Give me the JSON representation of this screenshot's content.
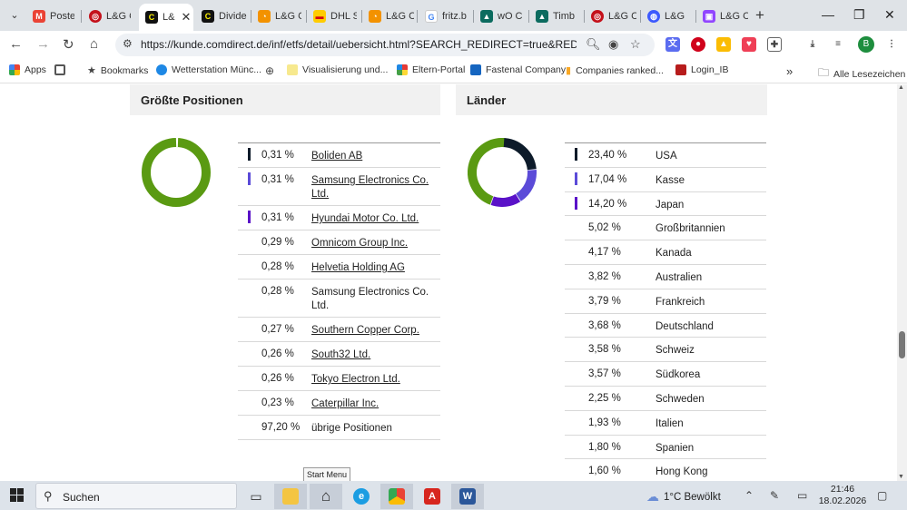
{
  "browser": {
    "tabs": [
      {
        "label": "Poste",
        "icon": "gmail-icon",
        "color": "#ea4335"
      },
      {
        "label": "L&G C",
        "icon": "comdirect-icon",
        "color": "#c4111b"
      },
      {
        "label": "L&",
        "icon": "c-logo-icon",
        "color": "#fff200",
        "active": true
      },
      {
        "label": "Divide",
        "icon": "c-logo-icon",
        "color": "#fff200"
      },
      {
        "label": "L&G C",
        "icon": "circle-icon",
        "color": "#f39200"
      },
      {
        "label": "DHL S",
        "icon": "dhl-icon",
        "color": "#ffcc00"
      },
      {
        "label": "L&G C",
        "icon": "circle-icon",
        "color": "#f39200"
      },
      {
        "label": "fritz.b",
        "icon": "google-icon",
        "color": "#4285f4"
      },
      {
        "label": "wO C",
        "icon": "wallstreet-icon",
        "color": "#0b6b5f"
      },
      {
        "label": "Timb",
        "icon": "wallstreet-icon",
        "color": "#0b6b5f"
      },
      {
        "label": "L&G C",
        "icon": "comdirect-icon",
        "color": "#c4111b"
      },
      {
        "label": "L&G",
        "icon": "globe-icon",
        "color": "#3d5afe"
      },
      {
        "label": "L&G C",
        "icon": "twitch-icon",
        "color": "#9146ff"
      }
    ],
    "url": "https://kunde.comdirect.de/inf/etfs/detail/uebersicht.html?SEARCH_REDIRECT=true&REDIRECT_T...",
    "profile_initial": "B",
    "bookmarks": [
      {
        "label": "Apps",
        "icon": "apps-grid-icon"
      },
      {
        "label": "",
        "icon": "grid-icon"
      },
      {
        "label": "Bookmarks",
        "icon": "star-icon"
      },
      {
        "label": "Wetterstation Münc...",
        "icon": "weather-icon"
      },
      {
        "label": "",
        "icon": "globe-icon"
      },
      {
        "label": "Visualisierung und...",
        "icon": "viz-icon"
      },
      {
        "label": "Eltern-Portal",
        "icon": "eltern-icon"
      },
      {
        "label": "Fastenal Company",
        "icon": "fastenal-icon"
      },
      {
        "label": "Companies ranked...",
        "icon": "bar-chart-icon"
      },
      {
        "label": "Login_IB",
        "icon": "login-icon"
      }
    ],
    "bookmarks_overflow": "»",
    "all_bookmarks": "Alle Lesezeichen"
  },
  "positions": {
    "title": "Größte Positionen",
    "items": [
      {
        "pct": "0,31 %",
        "name": "Boliden AB",
        "link": true,
        "color": "#0d1b2a"
      },
      {
        "pct": "0,31 %",
        "name": "Samsung Electronics Co. Ltd.",
        "link": true,
        "color": "#5b4bd8"
      },
      {
        "pct": "0,31 %",
        "name": "Hyundai Motor Co. Ltd.",
        "link": true,
        "color": "#5a12c8"
      },
      {
        "pct": "0,29 %",
        "name": "Omnicom Group Inc.",
        "link": true,
        "color": ""
      },
      {
        "pct": "0,28 %",
        "name": "Helvetia Holding AG",
        "link": true,
        "color": ""
      },
      {
        "pct": "0,28 %",
        "name": "Samsung Electronics Co. Ltd.",
        "link": false,
        "color": ""
      },
      {
        "pct": "0,27 %",
        "name": "Southern Copper Corp.",
        "link": true,
        "color": ""
      },
      {
        "pct": "0,26 %",
        "name": "South32 Ltd.",
        "link": true,
        "color": ""
      },
      {
        "pct": "0,26 %",
        "name": "Tokyo Electron Ltd.",
        "link": true,
        "color": ""
      },
      {
        "pct": "0,23 %",
        "name": "Caterpillar Inc.",
        "link": true,
        "color": ""
      },
      {
        "pct": "97,20 %",
        "name": "übrige Positionen",
        "link": false,
        "color": ""
      }
    ],
    "donut_colors": {
      "main": "#5a9a12",
      "top3": [
        "#0d1b2a",
        "#5b4bd8",
        "#5a12c8"
      ]
    }
  },
  "countries": {
    "title": "Länder",
    "items": [
      {
        "pct": "23,40 %",
        "name": "USA",
        "color": "#0d1b2a"
      },
      {
        "pct": "17,04 %",
        "name": "Kasse",
        "color": "#5b4bd8"
      },
      {
        "pct": "14,20 %",
        "name": "Japan",
        "color": "#5a12c8"
      },
      {
        "pct": "5,02 %",
        "name": "Großbritannien",
        "color": ""
      },
      {
        "pct": "4,17 %",
        "name": "Kanada",
        "color": ""
      },
      {
        "pct": "3,82 %",
        "name": "Australien",
        "color": ""
      },
      {
        "pct": "3,79 %",
        "name": "Frankreich",
        "color": ""
      },
      {
        "pct": "3,68 %",
        "name": "Deutschland",
        "color": ""
      },
      {
        "pct": "3,58 %",
        "name": "Schweiz",
        "color": ""
      },
      {
        "pct": "3,57 %",
        "name": "Südkorea",
        "color": ""
      },
      {
        "pct": "2,25 %",
        "name": "Schweden",
        "color": ""
      },
      {
        "pct": "1,93 %",
        "name": "Italien",
        "color": ""
      },
      {
        "pct": "1,80 %",
        "name": "Spanien",
        "color": ""
      },
      {
        "pct": "1,60 %",
        "name": "Hong Kong",
        "color": ""
      }
    ],
    "donut_colors": {
      "main": "#5a9a12"
    }
  },
  "tooltip": "Start Menu",
  "taskbar": {
    "search_label": "Suchen",
    "weather": "1°C  Bewölkt",
    "time": "21:46",
    "date": "18.02.2026"
  }
}
